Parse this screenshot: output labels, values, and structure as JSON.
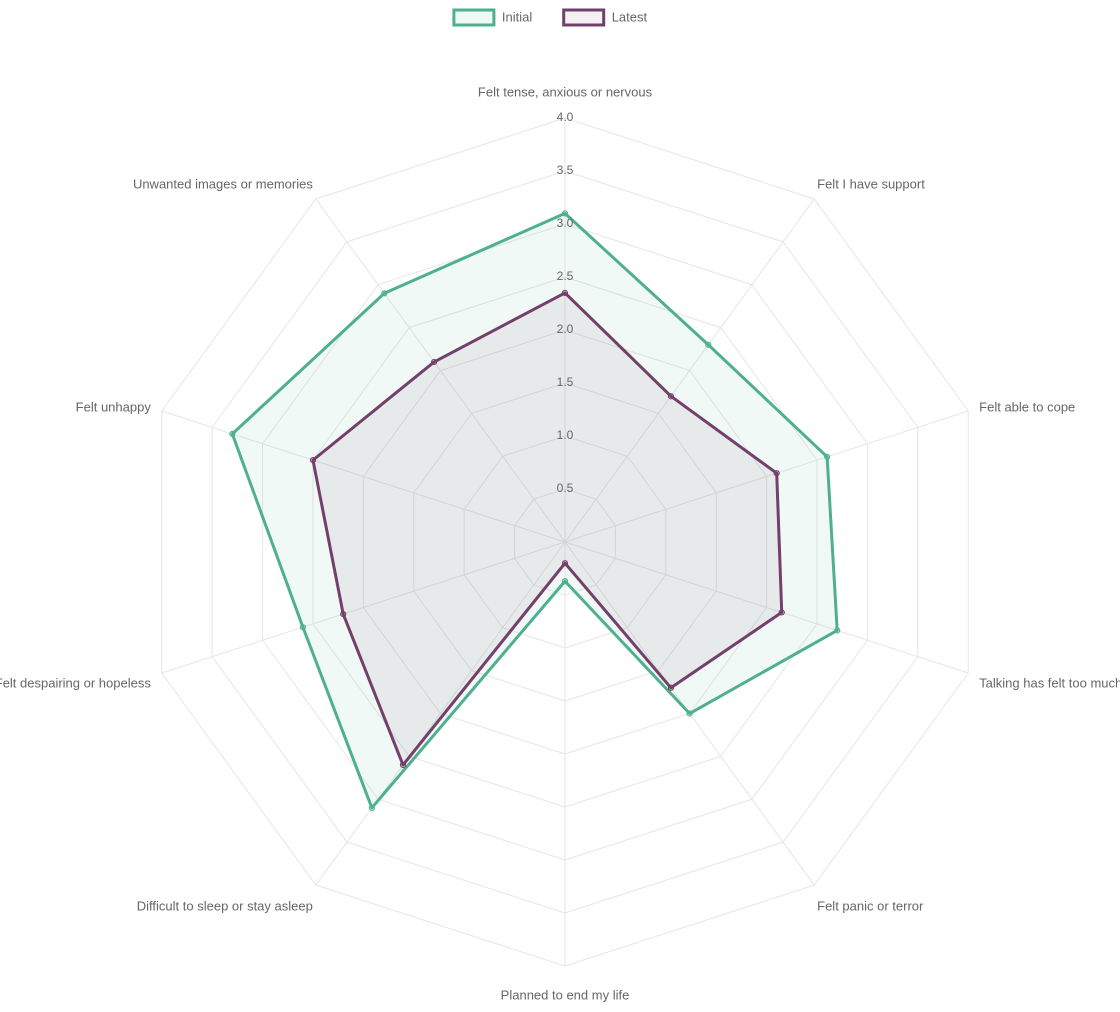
{
  "chart_data": {
    "type": "radar",
    "title": "",
    "categories": [
      "Felt tense, anxious or nervous",
      "Felt I have support",
      "Felt able to cope",
      "Talking has felt too much",
      "Felt panic or terror",
      "Planned to end my life",
      "Difficult to sleep or stay asleep",
      "Felt despairing or hopeless",
      "Felt unhappy",
      "Unwanted images or memories"
    ],
    "r_range": [
      0,
      4
    ],
    "ticks": [
      "0.5",
      "1.0",
      "1.5",
      "2.0",
      "2.5",
      "3.0",
      "3.5",
      "4.0"
    ],
    "tick_values": [
      0.5,
      1.0,
      1.5,
      2.0,
      2.5,
      3.0,
      3.5,
      4.0
    ],
    "grid": true,
    "legend_position": "top-center",
    "series": [
      {
        "name": "Initial",
        "color": "#4eb08e",
        "values": [
          3.1,
          2.3,
          2.6,
          2.7,
          2.0,
          0.37,
          3.1,
          2.6,
          3.3,
          2.9
        ]
      },
      {
        "name": "Latest",
        "color": "#733f6b",
        "values": [
          2.35,
          1.7,
          2.1,
          2.15,
          1.7,
          0.2,
          2.6,
          2.2,
          2.5,
          2.1
        ]
      }
    ]
  }
}
